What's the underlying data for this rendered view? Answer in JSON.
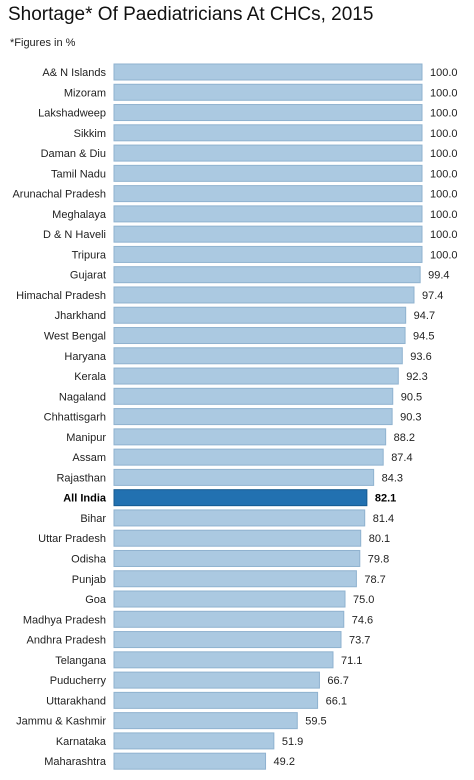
{
  "title": "Shortage* Of Paediatricians At CHCs, 2015",
  "subtitle": "*Figures in %",
  "colors": {
    "bar": "#abc9e1",
    "bar_stroke": "#8fb2cf",
    "highlight": "#2271b1",
    "highlight_stroke": "#155a90"
  },
  "chart_data": {
    "type": "bar",
    "orientation": "horizontal",
    "title": "Shortage* Of Paediatricians At CHCs, 2015",
    "subtitle": "*Figures in %",
    "xlim": [
      0,
      100
    ],
    "grid": false,
    "highlight": "All India",
    "categories": [
      "A& N Islands",
      "Mizoram",
      "Lakshadweep",
      "Sikkim",
      "Daman & Diu",
      "Tamil Nadu",
      "Arunachal Pradesh",
      "Meghalaya",
      "D & N Haveli",
      "Tripura",
      "Gujarat",
      "Himachal Pradesh",
      "Jharkhand",
      "West Bengal",
      "Haryana",
      "Kerala",
      "Nagaland",
      "Chhattisgarh",
      "Manipur",
      "Assam",
      "Rajasthan",
      "All India",
      "Bihar",
      "Uttar Pradesh",
      "Odisha",
      "Punjab",
      "Goa",
      "Madhya Pradesh",
      "Andhra Pradesh",
      "Telangana",
      "Puducherry",
      "Uttarakhand",
      "Jammu & Kashmir",
      "Karnataka",
      "Maharashtra"
    ],
    "values": [
      100.0,
      100.0,
      100.0,
      100.0,
      100.0,
      100.0,
      100.0,
      100.0,
      100.0,
      100.0,
      99.4,
      97.4,
      94.7,
      94.5,
      93.6,
      92.3,
      90.5,
      90.3,
      88.2,
      87.4,
      84.3,
      82.1,
      81.4,
      80.1,
      79.8,
      78.7,
      75.0,
      74.6,
      73.7,
      71.1,
      66.7,
      66.1,
      59.5,
      51.9,
      49.2
    ],
    "value_labels": [
      "100.0",
      "100.0",
      "100.0",
      "100.0",
      "100.0",
      "100.0",
      "100.0",
      "100.0",
      "100.0",
      "100.0",
      "99.4",
      "97.4",
      "94.7",
      "94.5",
      "93.6",
      "92.3",
      "90.5",
      "90.3",
      "88.2",
      "87.4",
      "84.3",
      "82.1",
      "81.4",
      "80.1",
      "79.8",
      "78.7",
      "75.0",
      "74.6",
      "73.7",
      "71.1",
      "66.7",
      "66.1",
      "59.5",
      "51.9",
      "49.2"
    ]
  }
}
